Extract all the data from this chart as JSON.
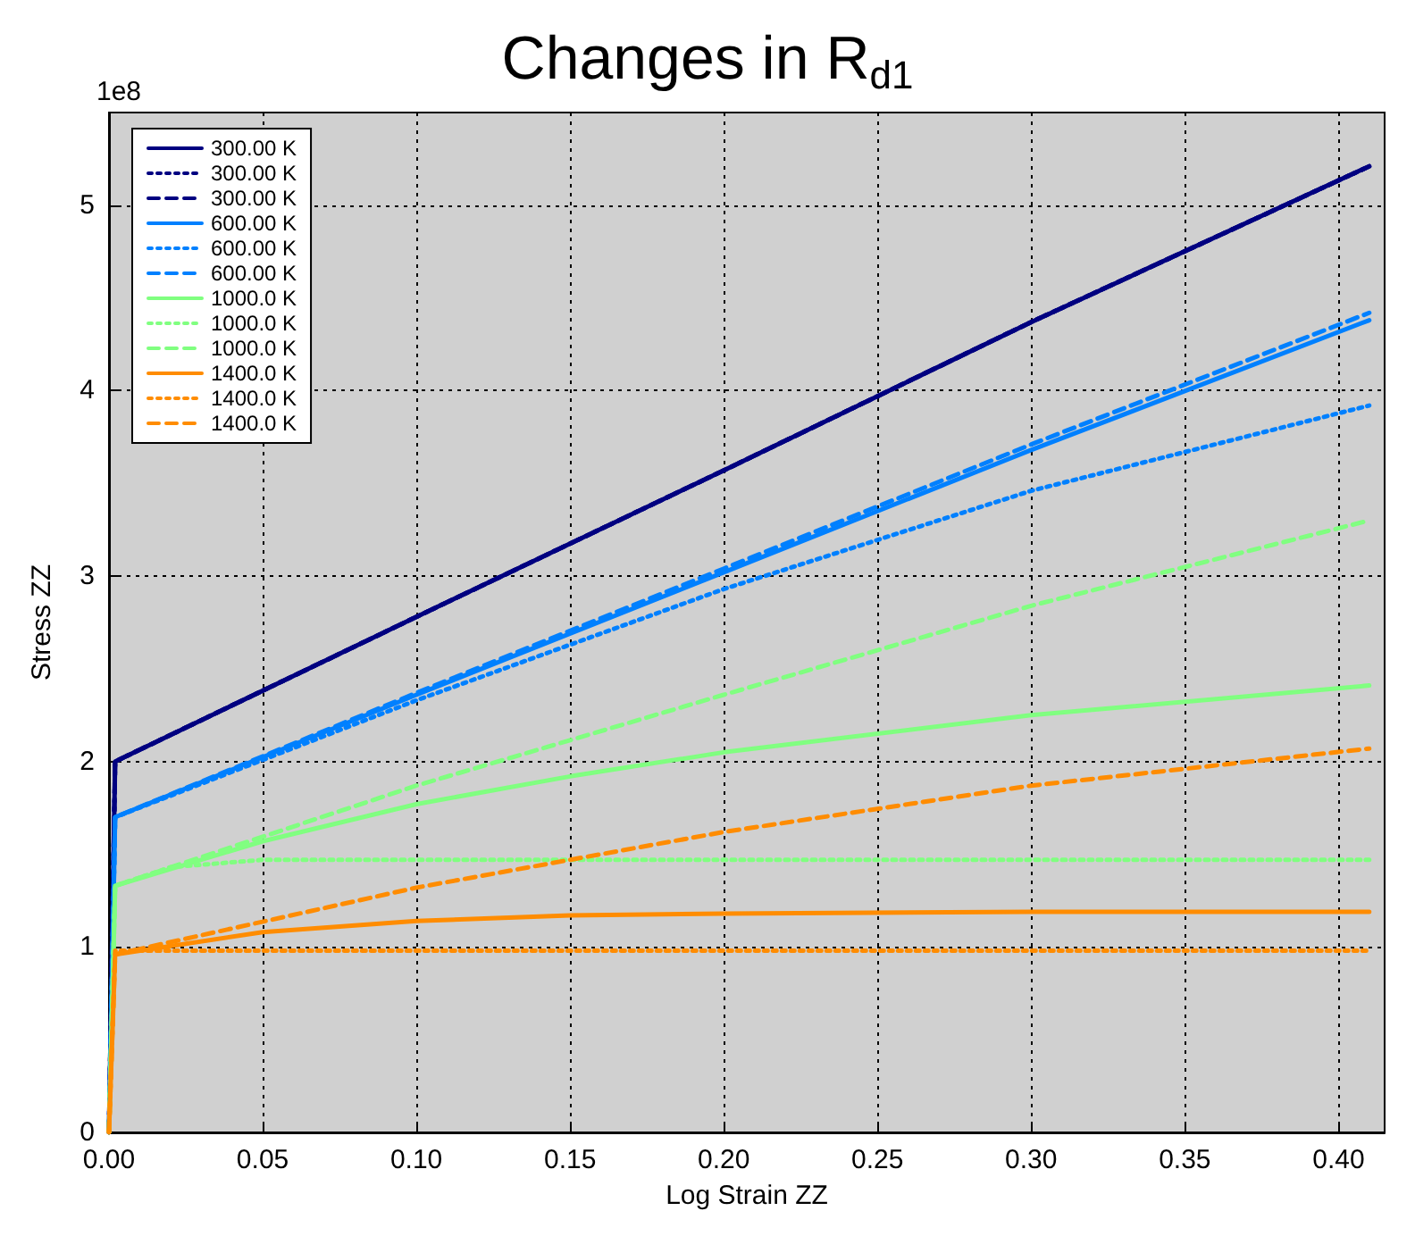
{
  "chart_data": {
    "type": "line",
    "title": "Changes in R$_{d1}$",
    "xlabel": "Log Strain ZZ",
    "ylabel": "Stress ZZ",
    "annotations": [
      "1e8"
    ],
    "xlim": [
      0,
      0.415
    ],
    "ylim": [
      0,
      5.5
    ],
    "xticks": [
      {
        "value": 0,
        "label": "0.00"
      },
      {
        "value": 0.05,
        "label": "0.05"
      },
      {
        "value": 0.1,
        "label": "0.10"
      },
      {
        "value": 0.15,
        "label": "0.15"
      },
      {
        "value": 0.2,
        "label": "0.20"
      },
      {
        "value": 0.25,
        "label": "0.25"
      },
      {
        "value": 0.3,
        "label": "0.30"
      },
      {
        "value": 0.35,
        "label": "0.35"
      },
      {
        "value": 0.4,
        "label": "0.40"
      }
    ],
    "yticks": [
      0,
      1,
      2,
      3,
      4,
      5
    ],
    "grid": true,
    "legend": "top left",
    "marker": "none",
    "series": [
      {
        "name": "300.00 K",
        "color": "#000080",
        "line_style": "solid",
        "x": [
          0,
          0.002,
          0.1,
          0.2,
          0.3,
          0.41
        ],
        "values": [
          0,
          2.0,
          2.78,
          3.57,
          4.37,
          5.21
        ]
      },
      {
        "name": "300.00 K",
        "color": "#000080",
        "line_style": "dotted",
        "x": [
          0,
          0.002,
          0.1,
          0.2,
          0.3,
          0.41
        ],
        "values": [
          0,
          2.0,
          2.78,
          3.57,
          4.37,
          5.21
        ]
      },
      {
        "name": "300.00 K",
        "color": "#000080",
        "line_style": "dashed",
        "x": [
          0,
          0.002,
          0.1,
          0.2,
          0.3,
          0.41
        ],
        "values": [
          0,
          2.0,
          2.78,
          3.57,
          4.37,
          5.21
        ]
      },
      {
        "name": "600.00 K",
        "color": "#0080ff",
        "line_style": "solid",
        "x": [
          0,
          0.002,
          0.1,
          0.2,
          0.3,
          0.41
        ],
        "values": [
          0,
          1.7,
          2.36,
          3.02,
          3.68,
          4.38
        ]
      },
      {
        "name": "600.00 K",
        "color": "#0080ff",
        "line_style": "dotted",
        "x": [
          0,
          0.002,
          0.1,
          0.2,
          0.3,
          0.41
        ],
        "values": [
          0,
          1.7,
          2.33,
          2.93,
          3.46,
          3.92
        ]
      },
      {
        "name": "600.00 K",
        "color": "#0080ff",
        "line_style": "dashed",
        "x": [
          0,
          0.002,
          0.1,
          0.2,
          0.3,
          0.41
        ],
        "values": [
          0,
          1.7,
          2.37,
          3.04,
          3.71,
          4.42
        ]
      },
      {
        "name": "1000.0 K",
        "color": "#80ff80",
        "line_style": "solid",
        "x": [
          0,
          0.002,
          0.05,
          0.1,
          0.15,
          0.2,
          0.3,
          0.41
        ],
        "values": [
          0,
          1.33,
          1.57,
          1.77,
          1.92,
          2.05,
          2.25,
          2.41
        ]
      },
      {
        "name": "1000.0 K",
        "color": "#80ff80",
        "line_style": "dotted",
        "x": [
          0,
          0.002,
          0.02,
          0.05,
          0.41
        ],
        "values": [
          0,
          1.33,
          1.43,
          1.47,
          1.47
        ]
      },
      {
        "name": "1000.0 K",
        "color": "#80ff80",
        "line_style": "dashed",
        "x": [
          0,
          0.002,
          0.1,
          0.2,
          0.3,
          0.41
        ],
        "values": [
          0,
          1.33,
          1.87,
          2.36,
          2.84,
          3.3
        ]
      },
      {
        "name": "1400.0 K",
        "color": "#ff8c00",
        "line_style": "solid",
        "x": [
          0,
          0.002,
          0.05,
          0.1,
          0.15,
          0.2,
          0.3,
          0.41
        ],
        "values": [
          0,
          0.96,
          1.08,
          1.14,
          1.17,
          1.18,
          1.19,
          1.19
        ]
      },
      {
        "name": "1400.0 K",
        "color": "#ff8c00",
        "line_style": "dotted",
        "x": [
          0,
          0.002,
          0.41
        ],
        "values": [
          0,
          0.98,
          0.98
        ]
      },
      {
        "name": "1400.0 K",
        "color": "#ff8c00",
        "line_style": "dashed",
        "x": [
          0,
          0.002,
          0.1,
          0.2,
          0.3,
          0.41
        ],
        "values": [
          0,
          0.96,
          1.32,
          1.62,
          1.87,
          2.07
        ]
      }
    ]
  }
}
